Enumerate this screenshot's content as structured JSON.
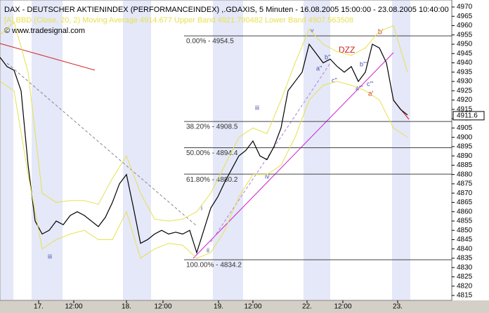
{
  "chart_data": {
    "type": "line",
    "title": "DAX  - DEUTSCHER AKTIENINDEX (PERFORMANCEINDEX) ,.GDAXIS, 5 Minuten - 16.08.2005 15:00:00 - 23.08.2005 10:40:00",
    "subtitle": "[A] BBD (Close, 20, 2) Moving Average 4914.677 Upper Band 4921.790482 Lower Band 4907.563508",
    "credit": "© www.tradesignal.com",
    "x": [
      0,
      1,
      2,
      3,
      4,
      5,
      6,
      7,
      8,
      9,
      10,
      11,
      12,
      13,
      14,
      15,
      16,
      17,
      18,
      19,
      20,
      21,
      22,
      23,
      24,
      25,
      26,
      27,
      28,
      29,
      30,
      31,
      32,
      33,
      34,
      35,
      36,
      37,
      38,
      39,
      40,
      41,
      42,
      43,
      44,
      45,
      46,
      47,
      48,
      49,
      50,
      51,
      52,
      53,
      54,
      55,
      56,
      57,
      58
    ],
    "series": [
      {
        "name": "DAX",
        "color": "#000000",
        "values": [
          4943,
          4938,
          4936,
          4925,
          4885,
          4855,
          4848,
          4850,
          4855,
          4853,
          4858,
          4860,
          4858,
          4855,
          4852,
          4857,
          4865,
          4875,
          4880,
          4862,
          4843,
          4845,
          4848,
          4850,
          4848,
          4849,
          4848,
          4850,
          4838,
          4850,
          4862,
          4868,
          4876,
          4883,
          4890,
          4893,
          4898,
          4890,
          4888,
          4895,
          4905,
          4925,
          4930,
          4935,
          4950,
          4945,
          4940,
          4942,
          4938,
          4935,
          4938,
          4930,
          4935,
          4950,
          4948,
          4940,
          4920,
          4915,
          4912
        ]
      },
      {
        "name": "Upper Band",
        "color": "#e8e050",
        "x": [
          0,
          2,
          4,
          6,
          8,
          10,
          12,
          14,
          16,
          18,
          20,
          22,
          24,
          26,
          28,
          30,
          32,
          34,
          36,
          38,
          40,
          42,
          44,
          46,
          48,
          50,
          52,
          54,
          56,
          58
        ],
        "values": [
          4955,
          4962,
          4935,
          4870,
          4865,
          4866,
          4866,
          4864,
          4878,
          4890,
          4870,
          4856,
          4855,
          4856,
          4860,
          4870,
          4885,
          4900,
          4905,
          4902,
          4920,
          4940,
          4958,
          4950,
          4946,
          4944,
          4948,
          4957,
          4960,
          4935
        ]
      },
      {
        "name": "Lower Band",
        "color": "#e8e050",
        "x": [
          0,
          2,
          4,
          6,
          8,
          10,
          12,
          14,
          16,
          18,
          20,
          22,
          24,
          26,
          28,
          30,
          32,
          34,
          36,
          38,
          40,
          42,
          44,
          46,
          48,
          50,
          52,
          54,
          56,
          58
        ],
        "values": [
          4930,
          4925,
          4880,
          4840,
          4845,
          4848,
          4850,
          4845,
          4845,
          4860,
          4835,
          4840,
          4843,
          4842,
          4835,
          4838,
          4850,
          4868,
          4880,
          4880,
          4885,
          4900,
          4920,
          4928,
          4930,
          4928,
          4925,
          4920,
          4905,
          4900
        ]
      }
    ],
    "xlim": [
      0,
      64.3
    ],
    "xticks": [
      {
        "value": 5.5,
        "label": "17."
      },
      {
        "value": 10.5,
        "label": "12:00"
      },
      {
        "value": 18,
        "label": "18."
      },
      {
        "value": 23.2,
        "label": "12:00"
      },
      {
        "value": 31.1,
        "label": "19."
      },
      {
        "value": 36,
        "label": "12:00"
      },
      {
        "value": 43.7,
        "label": "22."
      },
      {
        "value": 48.8,
        "label": "12:00"
      },
      {
        "value": 56.6,
        "label": "23."
      }
    ],
    "ylim": [
      4815,
      4970
    ],
    "yticks": [
      4815,
      4820,
      4825,
      4830,
      4835,
      4840,
      4845,
      4850,
      4855,
      4860,
      4865,
      4870,
      4875,
      4880,
      4885,
      4890,
      4895,
      4900,
      4905,
      4910,
      4915,
      4920,
      4925,
      4930,
      4935,
      4940,
      4945,
      4950,
      4955,
      4960,
      4965,
      4970
    ],
    "fib_levels": [
      {
        "value": 4954.5,
        "label": "0.00% - 4954.5"
      },
      {
        "value": 4908.5,
        "label": "38.20% - 4908.5"
      },
      {
        "value": 4894.4,
        "label": "50.00% - 4894.4"
      },
      {
        "value": 4880.2,
        "label": "61.80% - 4880.2"
      },
      {
        "value": 4834.2,
        "label": "100.00% - 4834.2"
      }
    ],
    "last_price": 4911.6,
    "annotations": [
      "DZZ",
      "b'",
      "a'",
      "iii",
      "iv",
      "i",
      "ii",
      "v",
      "iii",
      "a''",
      "b''",
      "c''",
      "a'''",
      "b'''",
      "c'''"
    ]
  }
}
